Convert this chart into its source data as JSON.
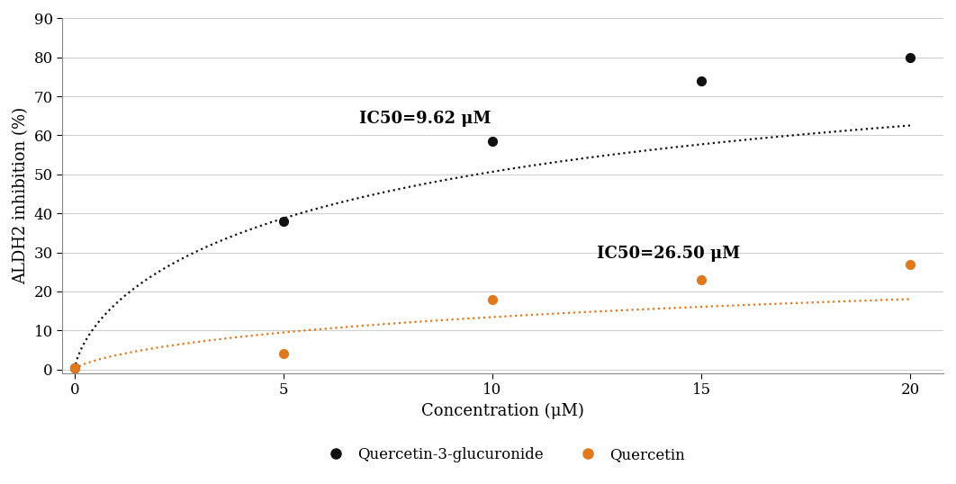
{
  "black_x": [
    0,
    5,
    10,
    15,
    20
  ],
  "black_y": [
    0.3,
    38.0,
    58.5,
    74.0,
    80.0
  ],
  "orange_x": [
    0,
    5,
    10,
    15,
    20
  ],
  "orange_y": [
    0.3,
    4.0,
    18.0,
    23.0,
    27.0
  ],
  "black_color": "#111111",
  "orange_color": "#e07820",
  "xlabel": "Concentration (μM)",
  "ylabel": "ALDH2 inhibition (%)",
  "ylim": [
    -1,
    90
  ],
  "xlim": [
    -0.3,
    20.8
  ],
  "yticks": [
    0,
    10,
    20,
    30,
    40,
    50,
    60,
    70,
    80,
    90
  ],
  "xticks": [
    0,
    5,
    10,
    15,
    20
  ],
  "ic50_black_label": "IC50=9.62 μM",
  "ic50_black_x": 6.8,
  "ic50_black_y": 63,
  "ic50_orange_label": "IC50=26.50 μM",
  "ic50_orange_x": 12.5,
  "ic50_orange_y": 28.5,
  "legend_black": "Quercetin-3-glucuronide",
  "legend_orange": "Quercetin",
  "background_color": "#ffffff",
  "grid_color": "#d0d0d0",
  "marker_size": 65,
  "line_width": 1.6,
  "font_size_label": 13,
  "font_size_tick": 12,
  "font_size_legend": 12,
  "font_size_annotation": 13
}
